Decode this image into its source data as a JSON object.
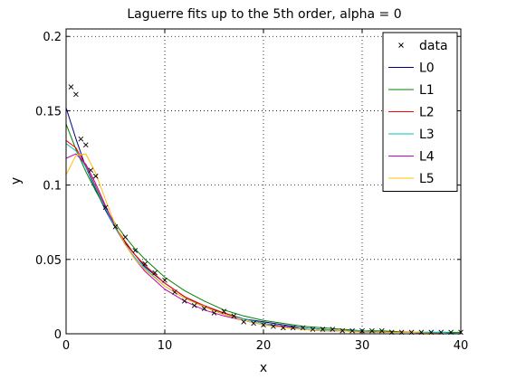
{
  "chart_data": {
    "type": "line",
    "title": "Laguerre fits up to the 5th order, alpha = 0",
    "xlabel": "x",
    "ylabel": "y",
    "xlim": [
      0,
      40
    ],
    "ylim": [
      0,
      0.205
    ],
    "xticks": [
      "0",
      "10",
      "20",
      "30",
      "40"
    ],
    "yticks": [
      "0",
      "0.05",
      "0.1",
      "0.15",
      "0.2"
    ],
    "xtick_values": [
      0,
      10,
      20,
      30,
      40
    ],
    "ytick_values": [
      0,
      0.05,
      0.1,
      0.15,
      0.2
    ],
    "grid": true,
    "legend_position": "top-right",
    "data_series": {
      "name": "data",
      "marker": "x",
      "color": "#000000",
      "x": [
        0.5,
        1,
        1.5,
        2,
        2.5,
        3,
        4,
        5,
        6,
        7,
        8,
        9,
        10,
        11,
        12,
        13,
        14,
        15,
        16,
        17,
        18,
        19,
        20,
        21,
        22,
        23,
        24,
        25,
        26,
        27,
        28,
        29,
        30,
        31,
        32,
        33,
        34,
        35,
        36,
        37,
        38,
        39,
        40
      ],
      "y": [
        0.166,
        0.161,
        0.131,
        0.127,
        0.11,
        0.106,
        0.085,
        0.072,
        0.065,
        0.056,
        0.047,
        0.041,
        0.036,
        0.028,
        0.022,
        0.019,
        0.017,
        0.014,
        0.015,
        0.012,
        0.008,
        0.007,
        0.006,
        0.005,
        0.004,
        0.004,
        0.004,
        0.003,
        0.003,
        0.003,
        0.002,
        0.002,
        0.002,
        0.002,
        0.002,
        0.001,
        0.001,
        0.001,
        0.001,
        0.001,
        0.001,
        0.001,
        0.001
      ]
    },
    "x": [
      0,
      1,
      2,
      3,
      4,
      5,
      6,
      7,
      8,
      10,
      12,
      14,
      16,
      18,
      20,
      22,
      24,
      26,
      28,
      30,
      32,
      35,
      38,
      40
    ],
    "series": [
      {
        "name": "L0",
        "color": "#000080",
        "values": [
          0.152,
          0.131,
          0.112,
          0.097,
          0.083,
          0.071,
          0.061,
          0.053,
          0.045,
          0.034,
          0.025,
          0.018,
          0.014,
          0.01,
          0.008,
          0.006,
          0.004,
          0.003,
          0.002,
          0.002,
          0.001,
          0.001,
          0.0,
          0.0
        ]
      },
      {
        "name": "L1",
        "color": "#008000",
        "values": [
          0.141,
          0.124,
          0.109,
          0.096,
          0.084,
          0.074,
          0.065,
          0.057,
          0.05,
          0.038,
          0.029,
          0.022,
          0.016,
          0.012,
          0.009,
          0.007,
          0.005,
          0.004,
          0.003,
          0.002,
          0.002,
          0.001,
          0.001,
          0.001
        ]
      },
      {
        "name": "L2",
        "color": "#ff0000",
        "values": [
          0.13,
          0.125,
          0.113,
          0.099,
          0.085,
          0.072,
          0.062,
          0.053,
          0.046,
          0.034,
          0.025,
          0.019,
          0.014,
          0.01,
          0.007,
          0.005,
          0.004,
          0.003,
          0.002,
          0.002,
          0.001,
          0.001,
          0.0,
          0.0
        ]
      },
      {
        "name": "L3",
        "color": "#00bfbf",
        "values": [
          0.128,
          0.123,
          0.112,
          0.098,
          0.084,
          0.071,
          0.06,
          0.051,
          0.044,
          0.032,
          0.024,
          0.018,
          0.013,
          0.01,
          0.007,
          0.005,
          0.004,
          0.003,
          0.002,
          0.002,
          0.001,
          0.001,
          0.001,
          0.0
        ]
      },
      {
        "name": "L4",
        "color": "#bf00bf",
        "values": [
          0.118,
          0.121,
          0.114,
          0.101,
          0.086,
          0.072,
          0.06,
          0.05,
          0.042,
          0.03,
          0.022,
          0.016,
          0.012,
          0.009,
          0.006,
          0.005,
          0.003,
          0.002,
          0.002,
          0.001,
          0.001,
          0.001,
          0.0,
          0.0
        ]
      },
      {
        "name": "L5",
        "color": "#ffbf00",
        "values": [
          0.107,
          0.12,
          0.121,
          0.108,
          0.09,
          0.073,
          0.06,
          0.05,
          0.043,
          0.032,
          0.024,
          0.018,
          0.013,
          0.009,
          0.006,
          0.004,
          0.003,
          0.002,
          0.002,
          0.001,
          0.001,
          0.001,
          0.0,
          0.0
        ]
      }
    ]
  }
}
